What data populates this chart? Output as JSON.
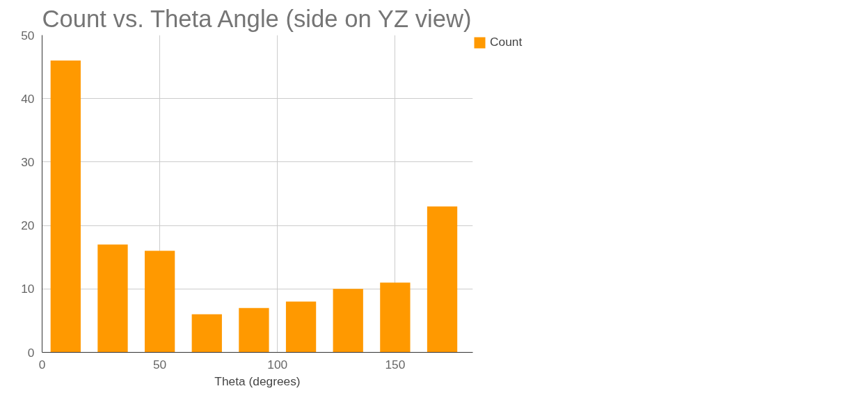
{
  "chart_data": {
    "type": "histogram",
    "title": "Count vs. Theta Angle (side on YZ view)",
    "xlabel": "Theta (degrees)",
    "bins": [
      0,
      20,
      40,
      60,
      80,
      100,
      120,
      140,
      160,
      180
    ],
    "series": [
      {
        "name": "Count",
        "color": "#ff9900",
        "values": [
          46,
          17,
          16,
          6,
          7,
          8,
          10,
          11,
          23
        ]
      }
    ],
    "xlim": [
      0,
      183
    ],
    "ylim": [
      0,
      50
    ],
    "xticks": [
      0,
      50,
      100,
      150
    ],
    "yticks": [
      0,
      10,
      20,
      30,
      40,
      50
    ],
    "grid": true,
    "legend": "top right"
  }
}
